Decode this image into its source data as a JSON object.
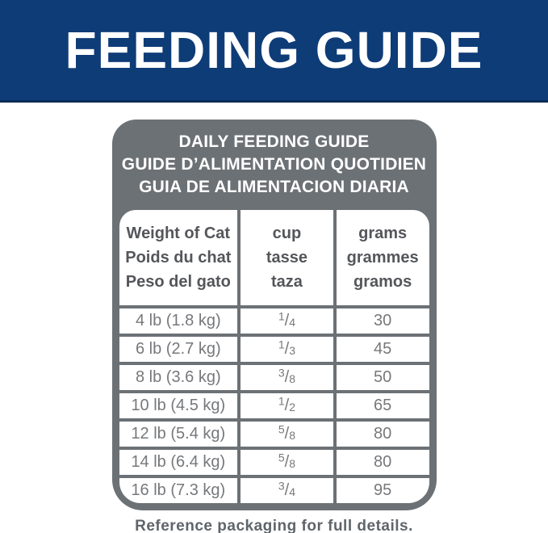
{
  "banner": {
    "title": "FEEDING GUIDE"
  },
  "panel": {
    "title_lines": [
      "DAILY FEEDING GUIDE",
      "GUIDE D’ALIMENTATION QUOTIDIEN",
      "GUIA DE ALIMENTACION DIARIA"
    ]
  },
  "table": {
    "columns": [
      {
        "lines": [
          "Weight of Cat",
          "Poids du chat",
          "Peso del gato"
        ]
      },
      {
        "lines": [
          "cup",
          "tasse",
          "taza"
        ]
      },
      {
        "lines": [
          "grams",
          "grammes",
          "gramos"
        ]
      }
    ],
    "rows": [
      {
        "weight": "4 lb (1.8 kg)",
        "cup_num": "1",
        "cup_den": "4",
        "grams": "30"
      },
      {
        "weight": "6 lb (2.7 kg)",
        "cup_num": "1",
        "cup_den": "3",
        "grams": "45"
      },
      {
        "weight": "8 lb (3.6 kg)",
        "cup_num": "3",
        "cup_den": "8",
        "grams": "50"
      },
      {
        "weight": "10 lb (4.5 kg)",
        "cup_num": "1",
        "cup_den": "2",
        "grams": "65"
      },
      {
        "weight": "12 lb (5.4 kg)",
        "cup_num": "5",
        "cup_den": "8",
        "grams": "80"
      },
      {
        "weight": "14 lb (6.4 kg)",
        "cup_num": "5",
        "cup_den": "8",
        "grams": "80"
      },
      {
        "weight": "16 lb (7.3 kg)",
        "cup_num": "3",
        "cup_den": "4",
        "grams": "95"
      }
    ]
  },
  "footer": {
    "note": "Reference packaging for full details."
  },
  "colors": {
    "banner_blue": "#0E3C77",
    "banner_edge": "#0B2B55",
    "panel_gray": "#6C7175",
    "header_text": "#54565A",
    "cell_text": "#76787B",
    "footer_text": "#5F656A",
    "text_white": "#FFFFFF",
    "page_bg": "#FFFFFF"
  }
}
